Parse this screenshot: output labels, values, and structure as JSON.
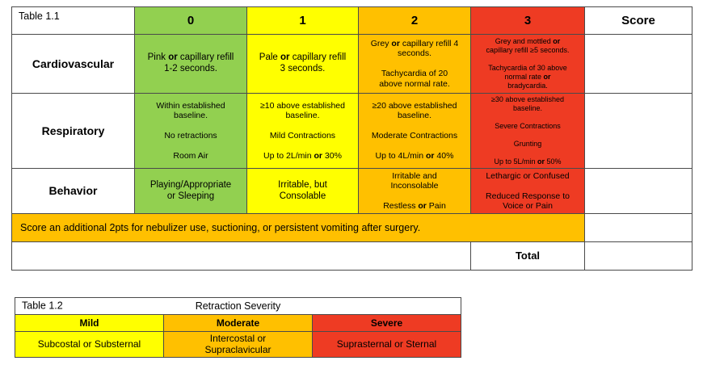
{
  "colors": {
    "green": "#92D050",
    "yellow": "#FFFF00",
    "orange": "#FFC000",
    "red": "#EE3B23",
    "border": "#4a4a4a"
  },
  "table1": {
    "label": "Table 1.1",
    "score_header": "Score",
    "columns": [
      "0",
      "1",
      "2",
      "3"
    ],
    "rows": [
      {
        "label": "Cardiovascular",
        "cells": [
          "Pink **or** capillary refill\n1-2 seconds.",
          "Pale **or** capillary refill\n3 seconds.",
          "Grey **or** capillary refill 4\nseconds.\n\nTachycardia of 20\nabove normal rate.",
          "Grey and mottled **or**\ncapillary refill ≥5 seconds.\n\nTachycardia of 30 above\nnormal rate **or**\nbradycardia."
        ]
      },
      {
        "label": "Respiratory",
        "cells": [
          "Within established\nbaseline.\n\nNo retractions\n\nRoom Air",
          "≥10 above established\nbaseline.\n\nMild Contractions\n\nUp to 2L/min **or** 30%",
          "≥20 above established\nbaseline.\n\nModerate Contractions\n\nUp to 4L/min **or** 40%",
          "≥30 above established\nbaseline.\n\nSevere Contractions\n\nGrunting\n\nUp to 5L/min **or** 50%"
        ]
      },
      {
        "label": "Behavior",
        "cells": [
          "Playing/Appropriate\nor Sleeping",
          "Irritable, but\nConsolable",
          "Irritable and\nInconsolable\n\nRestless **or** Pain",
          "Lethargic or Confused\n\nReduced Response to\nVoice or Pain"
        ]
      }
    ],
    "note": "Score an additional 2pts for nebulizer use, suctioning, or persistent vomiting after surgery.",
    "total_label": "Total"
  },
  "table2": {
    "label": "Table 1.2",
    "title": "Retraction Severity",
    "columns": [
      {
        "header": "Mild",
        "text": "Subcostal or Substernal"
      },
      {
        "header": "Moderate",
        "text": "Intercostal or\nSupraclavicular"
      },
      {
        "header": "Severe",
        "text": "Suprasternal or Sternal"
      }
    ]
  }
}
